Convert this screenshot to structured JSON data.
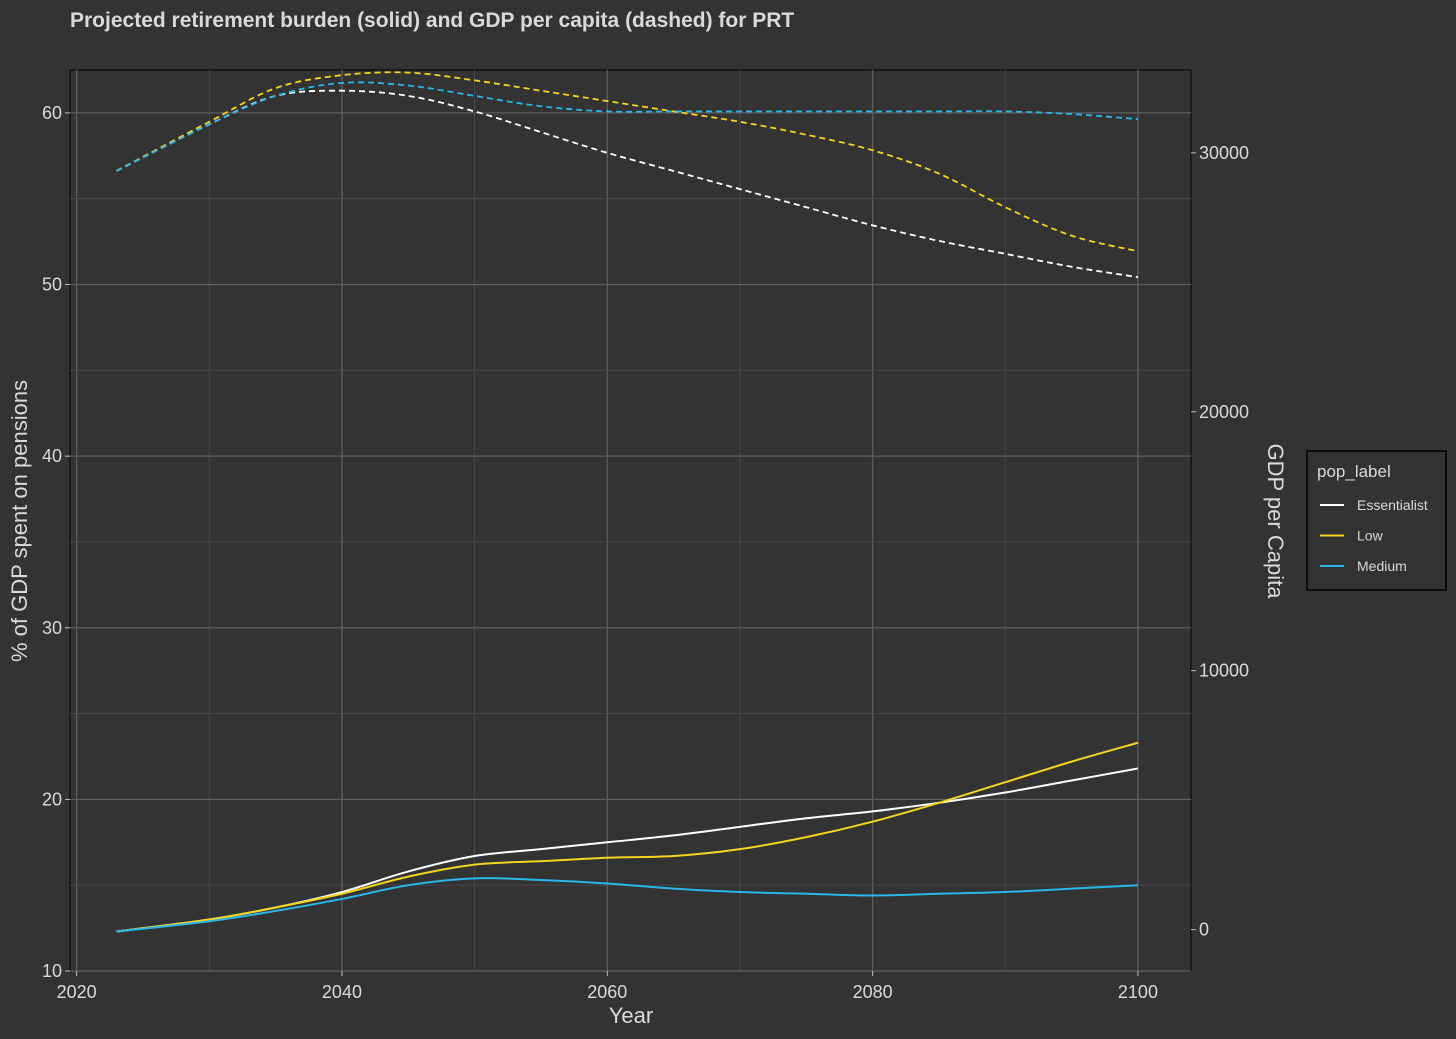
{
  "chart_data": {
    "type": "line",
    "title": "Projected retirement burden (solid) and GDP per capita (dashed) for PRT",
    "xlabel": "Year",
    "ylabel": "% of GDP spent on pensions",
    "ylabel_right": "GDP per Capita",
    "xlim": [
      2019.5,
      2104
    ],
    "ylim": [
      10,
      62.5
    ],
    "ylim_right": [
      -1600,
      33200
    ],
    "x_ticks": [
      2020,
      2040,
      2060,
      2080,
      2100
    ],
    "y_ticks": [
      10,
      20,
      30,
      40,
      50,
      60
    ],
    "y_ticks_right": [
      0,
      10000,
      20000,
      30000
    ],
    "grid": true,
    "legend": {
      "title": "pop_label",
      "position": "right",
      "entries": [
        "Essentialist",
        "Low",
        "Medium"
      ]
    },
    "series": [
      {
        "name": "Essentialist",
        "color": "#ffffff",
        "pension": {
          "x": [
            2023,
            2030,
            2035,
            2040,
            2045,
            2050,
            2055,
            2060,
            2065,
            2070,
            2075,
            2080,
            2085,
            2090,
            2095,
            2100
          ],
          "y": [
            12.3,
            13.0,
            13.7,
            14.6,
            15.8,
            16.7,
            17.1,
            17.5,
            17.9,
            18.4,
            18.9,
            19.3,
            19.8,
            20.4,
            21.1,
            21.8
          ]
        },
        "gdp": {
          "x": [
            2023,
            2030,
            2035,
            2040,
            2045,
            2050,
            2055,
            2060,
            2065,
            2070,
            2075,
            2080,
            2085,
            2090,
            2095,
            2100
          ],
          "y": [
            29300,
            31100,
            32200,
            32400,
            32200,
            31600,
            30800,
            30000,
            29300,
            28600,
            27900,
            27200,
            26600,
            26100,
            25600,
            25200
          ]
        }
      },
      {
        "name": "Low",
        "color": "#f5d31e",
        "pension": {
          "x": [
            2023,
            2030,
            2035,
            2040,
            2045,
            2050,
            2055,
            2060,
            2065,
            2070,
            2075,
            2080,
            2085,
            2090,
            2095,
            2100
          ],
          "y": [
            12.3,
            13.0,
            13.7,
            14.5,
            15.5,
            16.2,
            16.4,
            16.6,
            16.7,
            17.1,
            17.8,
            18.7,
            19.8,
            21.0,
            22.2,
            23.3
          ]
        },
        "gdp": {
          "x": [
            2023,
            2030,
            2035,
            2040,
            2045,
            2050,
            2055,
            2060,
            2065,
            2070,
            2075,
            2080,
            2085,
            2090,
            2095,
            2100
          ],
          "y": [
            29300,
            31200,
            32500,
            33000,
            33100,
            32800,
            32400,
            32000,
            31600,
            31200,
            30700,
            30100,
            29200,
            27900,
            26800,
            26200
          ]
        }
      },
      {
        "name": "Medium",
        "color": "#29b6e8",
        "pension": {
          "x": [
            2023,
            2030,
            2035,
            2040,
            2045,
            2050,
            2055,
            2060,
            2065,
            2070,
            2075,
            2080,
            2085,
            2090,
            2095,
            2100
          ],
          "y": [
            12.3,
            12.9,
            13.5,
            14.2,
            15.0,
            15.4,
            15.3,
            15.1,
            14.8,
            14.6,
            14.5,
            14.4,
            14.5,
            14.6,
            14.8,
            15.0
          ]
        },
        "gdp": {
          "x": [
            2023,
            2030,
            2035,
            2040,
            2045,
            2050,
            2055,
            2060,
            2065,
            2070,
            2075,
            2080,
            2085,
            2090,
            2095,
            2100
          ],
          "y": [
            29300,
            31100,
            32200,
            32700,
            32600,
            32200,
            31800,
            31600,
            31600,
            31600,
            31600,
            31600,
            31600,
            31600,
            31500,
            31300
          ]
        }
      }
    ]
  }
}
